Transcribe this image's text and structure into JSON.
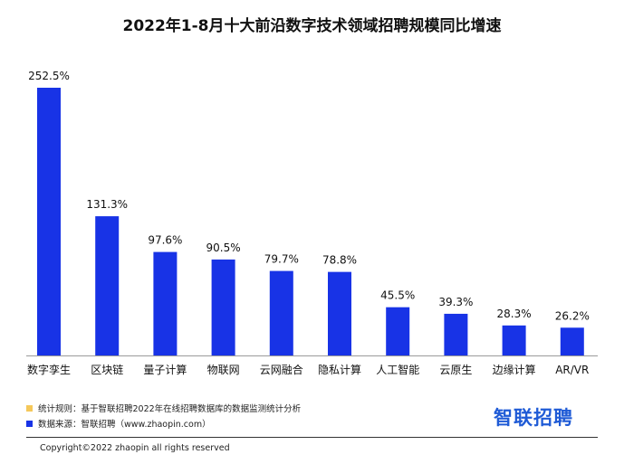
{
  "title": "2022年1-8月十大前沿数字技术领域招聘规模同比增速",
  "chart_data": {
    "type": "bar",
    "title": "2022年1-8月十大前沿数字技术领域招聘规模同比增速",
    "categories": [
      "数字孪生",
      "区块链",
      "量子计算",
      "物联网",
      "云网融合",
      "隐私计算",
      "人工智能",
      "云原生",
      "边缘计算",
      "AR/VR"
    ],
    "values": [
      252.5,
      131.3,
      97.6,
      90.5,
      79.7,
      78.8,
      45.5,
      39.3,
      28.3,
      26.2
    ],
    "value_labels": [
      "252.5%",
      "131.3%",
      "97.6%",
      "90.5%",
      "79.7%",
      "78.8%",
      "45.5%",
      "39.3%",
      "28.3%",
      "26.2%"
    ],
    "ylim": [
      0,
      252.5
    ],
    "bar_color": "#1833e6",
    "grid": false,
    "xlabel": "",
    "ylabel": ""
  },
  "notes": [
    {
      "text": "统计规则：基于智联招聘2022年在线招聘数据库的数据监测统计分析",
      "color": "#f5c85a"
    },
    {
      "text": "数据来源：智联招聘（www.zhaopin.com）",
      "color": "#1833e6"
    }
  ],
  "brand": "智联招聘",
  "brand_color": "#1f5bd6",
  "copyright": "Copyright©2022 zhaopin all rights reserved"
}
